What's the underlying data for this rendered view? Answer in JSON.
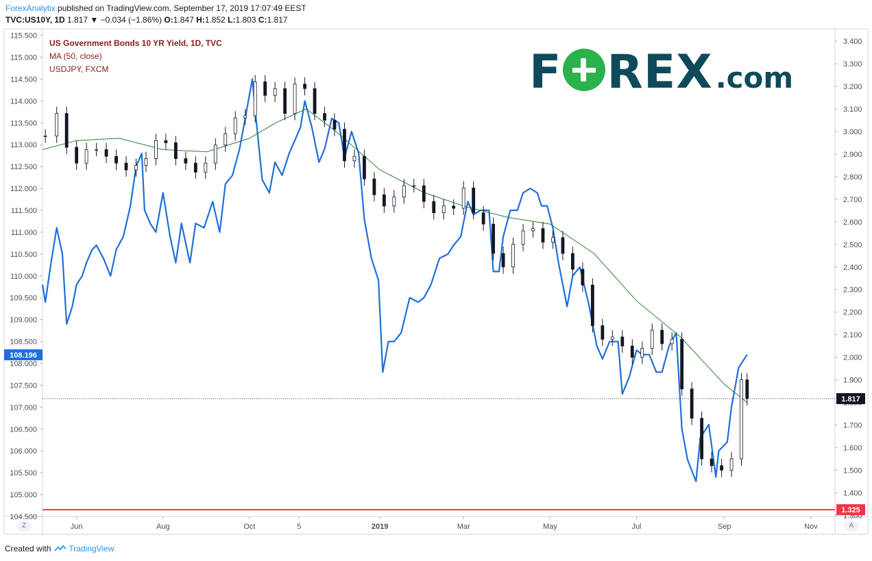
{
  "header": {
    "author": "ForexAnalytix",
    "published": "published on TradingView.com, September 17, 2019 17:07:49 EEST",
    "symbol": "TVC:US10Y, 1D",
    "last": "1.817",
    "change": "−0.034 (−1.86%)",
    "open_label": "O:",
    "open": "1.847",
    "high_label": "H:",
    "high": "1.852",
    "low_label": "L:",
    "low": "1.803",
    "close_label": "C:",
    "close": "1.817"
  },
  "legend": {
    "line1": "US Government Bonds 10 YR Yield, 1D, TVC",
    "line2": "MA (50, close)",
    "line3": "USDJPY, FXCM"
  },
  "logo": {
    "main_pre": "F",
    "main_post": "REX",
    "suffix": ".com"
  },
  "footer": {
    "created": "Created with",
    "brand": "TradingView"
  },
  "corners": {
    "left": "Z",
    "right": "A"
  },
  "colors": {
    "usdjpy": "#1e6fd9",
    "ma": "#2e7d32",
    "candles": "#131722",
    "support": "#f23645",
    "usdjpy_label": "#1e6fd9"
  },
  "chart_data": {
    "type": "line",
    "title": "US Government Bonds 10 YR Yield, 1D, TVC",
    "x_tick_labels": [
      "Jun",
      "Aug",
      "Oct",
      "5",
      "2019",
      "Mar",
      "May",
      "Jul",
      "Sep",
      "Nov"
    ],
    "x_tick_dates": [
      "2018-06-01",
      "2018-08-01",
      "2018-10-01",
      "2018-11-05",
      "2019-01-01",
      "2019-03-01",
      "2019-05-01",
      "2019-07-01",
      "2019-09-01",
      "2019-11-01"
    ],
    "x_range": [
      "2018-05-08",
      "2019-11-18"
    ],
    "left_axis": {
      "label": "",
      "ylim": [
        104.5,
        115.65
      ],
      "ticks": [
        104.5,
        105.0,
        105.5,
        106.0,
        106.5,
        107.0,
        107.5,
        108.0,
        108.5,
        109.0,
        109.5,
        110.0,
        110.5,
        111.0,
        111.5,
        112.0,
        112.5,
        113.0,
        113.5,
        114.0,
        114.5,
        115.0,
        115.5
      ],
      "tick_labels": [
        "104.500",
        "105.000",
        "105.500",
        "106.000",
        "106.500",
        "107.000",
        "107.500",
        "108.000",
        "108.500",
        "109.000",
        "109.500",
        "110.000",
        "110.500",
        "111.000",
        "111.500",
        "112.000",
        "112.500",
        "113.000",
        "113.500",
        "114.000",
        "114.500",
        "115.000",
        "115.500"
      ],
      "current_label": "108.196",
      "current_value": 108.196
    },
    "right_axis": {
      "label": "",
      "ylim": [
        1.295,
        3.455
      ],
      "ticks": [
        1.3,
        1.4,
        1.5,
        1.6,
        1.7,
        1.8,
        1.9,
        2.0,
        2.1,
        2.2,
        2.3,
        2.4,
        2.5,
        2.6,
        2.7,
        2.8,
        2.9,
        3.0,
        3.1,
        3.2,
        3.3,
        3.4
      ],
      "tick_labels": [
        "1.300",
        "1.400",
        "1.500",
        "1.600",
        "1.700",
        "1.800",
        "1.900",
        "2.000",
        "2.100",
        "2.200",
        "2.300",
        "2.400",
        "2.500",
        "2.600",
        "2.700",
        "2.800",
        "2.900",
        "3.000",
        "3.100",
        "3.200",
        "3.300",
        "3.400"
      ],
      "current_label": "1.817",
      "current_value": 1.817,
      "support_label": "1.325",
      "support_value": 1.325
    },
    "grid": false,
    "legend_position": "top-left",
    "series": [
      {
        "name": "US Government Bonds 10 YR Yield, 1D, TVC",
        "axis": "right",
        "style": "candles",
        "dates": [
          "2018-05-10",
          "2018-05-18",
          "2018-05-25",
          "2018-06-01",
          "2018-06-08",
          "2018-06-15",
          "2018-06-22",
          "2018-06-29",
          "2018-07-06",
          "2018-07-13",
          "2018-07-20",
          "2018-07-27",
          "2018-08-03",
          "2018-08-10",
          "2018-08-17",
          "2018-08-24",
          "2018-08-31",
          "2018-09-07",
          "2018-09-14",
          "2018-09-21",
          "2018-09-28",
          "2018-10-05",
          "2018-10-12",
          "2018-10-19",
          "2018-10-26",
          "2018-11-02",
          "2018-11-09",
          "2018-11-16",
          "2018-11-23",
          "2018-11-30",
          "2018-12-07",
          "2018-12-14",
          "2018-12-21",
          "2018-12-28",
          "2019-01-04",
          "2019-01-11",
          "2019-01-18",
          "2019-01-25",
          "2019-02-01",
          "2019-02-08",
          "2019-02-15",
          "2019-02-22",
          "2019-03-01",
          "2019-03-08",
          "2019-03-15",
          "2019-03-22",
          "2019-03-29",
          "2019-04-05",
          "2019-04-12",
          "2019-04-19",
          "2019-04-26",
          "2019-05-03",
          "2019-05-10",
          "2019-05-17",
          "2019-05-24",
          "2019-05-31",
          "2019-06-07",
          "2019-06-14",
          "2019-06-21",
          "2019-06-28",
          "2019-07-05",
          "2019-07-12",
          "2019-07-19",
          "2019-07-26",
          "2019-08-02",
          "2019-08-09",
          "2019-08-16",
          "2019-08-23",
          "2019-08-30",
          "2019-09-06",
          "2019-09-13",
          "2019-09-17"
        ],
        "values": [
          2.98,
          3.08,
          2.93,
          2.86,
          2.92,
          2.92,
          2.89,
          2.86,
          2.83,
          2.85,
          2.88,
          2.96,
          2.95,
          2.88,
          2.86,
          2.82,
          2.86,
          2.94,
          2.99,
          3.06,
          3.07,
          3.22,
          3.16,
          3.19,
          3.08,
          3.21,
          3.19,
          3.08,
          3.05,
          3.01,
          2.87,
          2.89,
          2.79,
          2.72,
          2.67,
          2.71,
          2.76,
          2.76,
          2.69,
          2.64,
          2.67,
          2.66,
          2.75,
          2.64,
          2.59,
          2.46,
          2.4,
          2.5,
          2.56,
          2.57,
          2.51,
          2.53,
          2.46,
          2.39,
          2.32,
          2.14,
          2.08,
          2.09,
          2.05,
          2.0,
          2.04,
          2.12,
          2.06,
          2.08,
          1.86,
          1.73,
          1.55,
          1.52,
          1.5,
          1.55,
          1.9,
          1.817
        ]
      },
      {
        "name": "MA (50, close)",
        "axis": "right",
        "style": "line",
        "dates": [
          "2018-05-08",
          "2018-06-01",
          "2018-07-01",
          "2018-08-01",
          "2018-09-01",
          "2018-10-01",
          "2018-10-20",
          "2018-11-10",
          "2018-12-01",
          "2019-01-01",
          "2019-02-01",
          "2019-03-01",
          "2019-04-01",
          "2019-05-01",
          "2019-06-01",
          "2019-07-01",
          "2019-08-01",
          "2019-09-01",
          "2019-09-17"
        ],
        "values": [
          2.92,
          2.96,
          2.97,
          2.92,
          2.91,
          2.97,
          3.04,
          3.1,
          3.0,
          2.83,
          2.73,
          2.67,
          2.62,
          2.59,
          2.46,
          2.25,
          2.09,
          1.88,
          1.8
        ]
      },
      {
        "name": "USDJPY, FXCM",
        "axis": "left",
        "style": "line",
        "dates": [
          "2018-05-08",
          "2018-05-10",
          "2018-05-14",
          "2018-05-18",
          "2018-05-22",
          "2018-05-25",
          "2018-05-29",
          "2018-06-01",
          "2018-06-05",
          "2018-06-08",
          "2018-06-12",
          "2018-06-15",
          "2018-06-20",
          "2018-06-25",
          "2018-06-29",
          "2018-07-04",
          "2018-07-09",
          "2018-07-13",
          "2018-07-17",
          "2018-07-19",
          "2018-07-23",
          "2018-07-27",
          "2018-08-01",
          "2018-08-06",
          "2018-08-10",
          "2018-08-14",
          "2018-08-20",
          "2018-08-24",
          "2018-08-30",
          "2018-09-05",
          "2018-09-10",
          "2018-09-14",
          "2018-09-19",
          "2018-09-24",
          "2018-09-28",
          "2018-10-03",
          "2018-10-05",
          "2018-10-10",
          "2018-10-15",
          "2018-10-19",
          "2018-10-24",
          "2018-10-29",
          "2018-11-02",
          "2018-11-06",
          "2018-11-09",
          "2018-11-14",
          "2018-11-19",
          "2018-11-23",
          "2018-11-28",
          "2018-12-03",
          "2018-12-07",
          "2018-12-12",
          "2018-12-17",
          "2018-12-21",
          "2018-12-26",
          "2018-12-31",
          "2019-01-03",
          "2019-01-07",
          "2019-01-11",
          "2019-01-16",
          "2019-01-22",
          "2019-01-28",
          "2019-02-01",
          "2019-02-06",
          "2019-02-12",
          "2019-02-18",
          "2019-02-22",
          "2019-02-27",
          "2019-03-04",
          "2019-03-08",
          "2019-03-13",
          "2019-03-19",
          "2019-03-22",
          "2019-03-26",
          "2019-03-29",
          "2019-04-03",
          "2019-04-08",
          "2019-04-12",
          "2019-04-17",
          "2019-04-22",
          "2019-04-25",
          "2019-04-29",
          "2019-05-03",
          "2019-05-07",
          "2019-05-13",
          "2019-05-17",
          "2019-05-22",
          "2019-05-28",
          "2019-06-03",
          "2019-06-07",
          "2019-06-12",
          "2019-06-18",
          "2019-06-21",
          "2019-06-26",
          "2019-07-01",
          "2019-07-05",
          "2019-07-10",
          "2019-07-15",
          "2019-07-19",
          "2019-07-24",
          "2019-07-29",
          "2019-08-02",
          "2019-08-06",
          "2019-08-12",
          "2019-08-15",
          "2019-08-21",
          "2019-08-26",
          "2019-08-28",
          "2019-09-03",
          "2019-09-06",
          "2019-09-11",
          "2019-09-17"
        ],
        "values": [
          109.8,
          109.4,
          110.3,
          111.1,
          110.5,
          108.9,
          109.3,
          109.8,
          110.0,
          110.3,
          110.6,
          110.7,
          110.4,
          110.0,
          110.6,
          110.9,
          111.6,
          112.5,
          112.8,
          111.5,
          111.2,
          111.0,
          111.9,
          110.9,
          110.3,
          111.2,
          110.3,
          111.2,
          111.1,
          111.7,
          111.0,
          112.1,
          112.3,
          112.9,
          113.6,
          114.5,
          113.8,
          112.2,
          111.9,
          112.6,
          112.3,
          112.8,
          113.1,
          113.4,
          114.0,
          113.4,
          112.6,
          112.9,
          113.6,
          113.5,
          112.7,
          113.3,
          112.8,
          111.3,
          110.4,
          109.9,
          107.8,
          108.5,
          108.5,
          108.7,
          109.5,
          109.4,
          109.5,
          109.8,
          110.4,
          110.5,
          110.7,
          110.9,
          111.7,
          111.4,
          111.5,
          111.5,
          110.1,
          110.1,
          110.9,
          111.5,
          111.5,
          111.9,
          112.0,
          111.9,
          111.6,
          111.6,
          111.1,
          110.3,
          109.3,
          110.0,
          110.2,
          109.4,
          108.4,
          108.1,
          108.5,
          108.5,
          107.3,
          107.7,
          108.3,
          108.2,
          108.2,
          107.8,
          107.8,
          108.4,
          108.7,
          106.5,
          105.8,
          105.3,
          106.3,
          106.6,
          105.4,
          106.0,
          106.2,
          107.0,
          107.9,
          108.2
        ]
      }
    ],
    "horizontal_lines": [
      {
        "axis": "right",
        "value": 1.325,
        "color": "red",
        "style": "solid"
      },
      {
        "axis": "right",
        "value": 1.817,
        "color": "black",
        "style": "dotted"
      }
    ]
  }
}
